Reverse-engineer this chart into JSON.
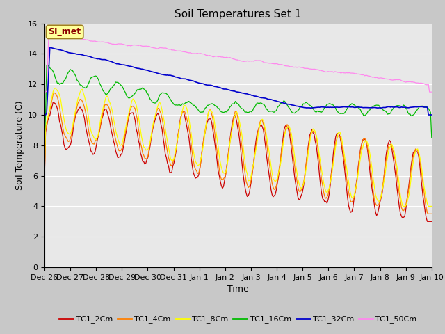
{
  "title": "Soil Temperatures Set 1",
  "xlabel": "Time",
  "ylabel": "Soil Temperature (C)",
  "ylim": [
    0,
    16
  ],
  "yticks": [
    0,
    2,
    4,
    6,
    8,
    10,
    12,
    14,
    16
  ],
  "fig_bg_color": "#c8c8c8",
  "plot_bg_color": "#e8e8e8",
  "annotation_text": "SI_met",
  "annotation_color": "#8b0000",
  "annotation_bg": "#ffff99",
  "annotation_border": "#a08020",
  "series_colors": {
    "TC1_2Cm": "#cc0000",
    "TC1_4Cm": "#ff8000",
    "TC1_8Cm": "#ffff00",
    "TC1_16Cm": "#00bb00",
    "TC1_32Cm": "#0000cc",
    "TC1_50Cm": "#ff88ee"
  },
  "x_tick_labels": [
    "Dec 26",
    "Dec 27",
    "Dec 28",
    "Dec 29",
    "Dec 30",
    "Dec 31",
    "Jan 1",
    "Jan 2",
    "Jan 3",
    "Jan 4",
    "Jan 5",
    "Jan 6",
    "Jan 7",
    "Jan 8",
    "Jan 9",
    "Jan 10"
  ],
  "title_fontsize": 11,
  "axis_label_fontsize": 9,
  "tick_fontsize": 8,
  "legend_fontsize": 8
}
